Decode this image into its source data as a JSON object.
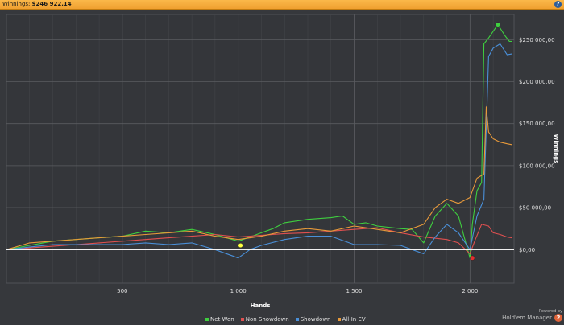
{
  "window": {
    "title_label": "Winnings:",
    "title_value": "$246 922,14",
    "help_icon": "question-circle-icon"
  },
  "branding": {
    "powered_by": "Powered by",
    "product": "Hold'em Manager",
    "badge": "2"
  },
  "chart_data": {
    "type": "line",
    "xlabel": "Hands",
    "ylabel": "Winnings",
    "xlim": [
      0,
      2190
    ],
    "ylim": [
      -40000,
      280000
    ],
    "x_ticks": [
      500,
      1000,
      1500,
      2000
    ],
    "x_tick_labels": [
      "500",
      "1 000",
      "1 500",
      "2 000"
    ],
    "y_ticks": [
      0,
      50000,
      100000,
      150000,
      200000,
      250000
    ],
    "y_tick_labels": [
      "$0,00",
      "$50 000,00",
      "$100 000,00",
      "$150 000,00",
      "$200 000,00",
      "$250 000,00"
    ],
    "grid": true,
    "legend_position": "bottom-center",
    "series": [
      {
        "name": "Net Won",
        "color": "#3fcf3f",
        "x": [
          0,
          100,
          200,
          300,
          400,
          500,
          600,
          700,
          800,
          900,
          1000,
          1050,
          1100,
          1150,
          1200,
          1300,
          1400,
          1450,
          1500,
          1550,
          1600,
          1700,
          1750,
          1800,
          1850,
          1900,
          1950,
          2000,
          2010,
          2030,
          2050,
          2060,
          2080,
          2100,
          2120,
          2150,
          2170,
          2180
        ],
        "y": [
          0,
          5000,
          10000,
          12000,
          14000,
          16000,
          22000,
          20000,
          24000,
          18000,
          10000,
          15000,
          20000,
          25000,
          32000,
          36000,
          38000,
          40000,
          30000,
          32000,
          28000,
          25000,
          24000,
          8000,
          40000,
          55000,
          40000,
          -10000,
          30000,
          70000,
          80000,
          245000,
          252000,
          260000,
          268000,
          255000,
          248000,
          248000
        ]
      },
      {
        "name": "Non Showdown",
        "color": "#e05050",
        "x": [
          0,
          100,
          200,
          300,
          400,
          500,
          600,
          700,
          800,
          900,
          1000,
          1100,
          1200,
          1300,
          1400,
          1500,
          1600,
          1700,
          1800,
          1900,
          1950,
          2000,
          2020,
          2050,
          2080,
          2100,
          2130,
          2160,
          2180
        ],
        "y": [
          0,
          2000,
          4000,
          6000,
          8000,
          10000,
          12000,
          14000,
          16000,
          18000,
          15000,
          17000,
          19000,
          20000,
          22000,
          24000,
          26000,
          20000,
          15000,
          12000,
          8000,
          -5000,
          10000,
          30000,
          28000,
          20000,
          18000,
          15000,
          14000
        ]
      },
      {
        "name": "Showdown",
        "color": "#4a90d9",
        "x": [
          0,
          100,
          200,
          300,
          400,
          500,
          600,
          700,
          800,
          900,
          1000,
          1050,
          1100,
          1200,
          1300,
          1400,
          1500,
          1600,
          1700,
          1800,
          1850,
          1900,
          1950,
          2000,
          2030,
          2060,
          2080,
          2100,
          2130,
          2160,
          2180
        ],
        "y": [
          0,
          3000,
          6000,
          6000,
          6000,
          6000,
          8000,
          6000,
          8000,
          0,
          -10000,
          0,
          5000,
          12000,
          16000,
          16000,
          6000,
          6000,
          5000,
          -5000,
          15000,
          30000,
          20000,
          0,
          40000,
          60000,
          230000,
          240000,
          245000,
          232000,
          233000
        ]
      },
      {
        "name": "All-In EV",
        "color": "#e89a3a",
        "x": [
          0,
          100,
          200,
          300,
          400,
          500,
          600,
          700,
          800,
          900,
          1000,
          1100,
          1200,
          1300,
          1400,
          1500,
          1600,
          1700,
          1800,
          1850,
          1900,
          1950,
          2000,
          2030,
          2060,
          2070,
          2080,
          2100,
          2130,
          2160,
          2180
        ],
        "y": [
          0,
          8000,
          10000,
          12000,
          14000,
          16000,
          18000,
          20000,
          22000,
          16000,
          12000,
          16000,
          22000,
          25000,
          22000,
          28000,
          24000,
          20000,
          30000,
          50000,
          60000,
          55000,
          62000,
          85000,
          90000,
          170000,
          140000,
          132000,
          128000,
          126000,
          125000
        ]
      }
    ],
    "markers": [
      {
        "name": "min-marker",
        "x": 2010,
        "y": -10000,
        "color": "#e03030"
      },
      {
        "name": "max-marker",
        "x": 2120,
        "y": 268000,
        "color": "#3fcf3f"
      },
      {
        "name": "break-even-marker",
        "x": 1010,
        "y": 5000,
        "color": "#ffff40"
      }
    ]
  }
}
